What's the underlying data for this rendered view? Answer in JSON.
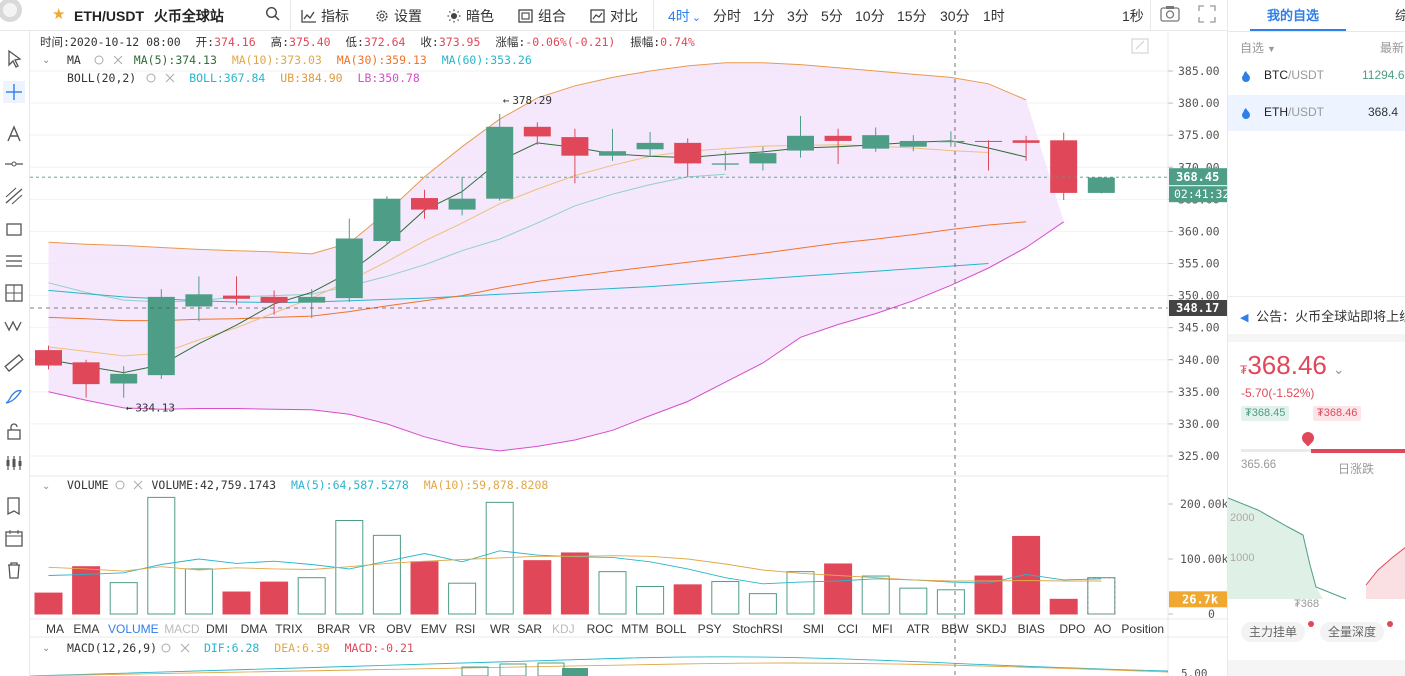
{
  "colors": {
    "up": "#4e9d86",
    "down": "#e0485a",
    "boll_fill": "#f3e4fb",
    "boll_up": "#e89a4c",
    "boll_mid": "#8fd0c8",
    "boll_low": "#d64dca",
    "ma5": "#2f6e36",
    "ma10": "#efc07a",
    "ma30": "#f0742a",
    "ma60": "#27b6cc",
    "accent": "#2f7fe8"
  },
  "toolbar": {
    "symbol": "ETH/USDT",
    "exchange": "火币全球站",
    "indicators": "指标",
    "settings": "设置",
    "dark": "暗色",
    "combine": "组合",
    "compare": "对比",
    "periods": [
      "4时",
      "分时",
      "1分",
      "3分",
      "5分",
      "10分",
      "15分",
      "30分",
      "1时"
    ],
    "active_period_arrow": "⌄",
    "refresh": "1秒"
  },
  "info": {
    "time_label": "时间:",
    "time": "2020-10-12 08:00",
    "open_label": "开:",
    "open": "374.16",
    "high_label": "高:",
    "high": "375.40",
    "low_label": "低:",
    "low": "372.64",
    "close_label": "收:",
    "close": "373.95",
    "change_label": "涨幅:",
    "change": "-0.06%(-0.21)",
    "amp_label": "振幅:",
    "amp": "0.74%"
  },
  "legend": {
    "ma": "MA",
    "ma5": "MA(5):374.13",
    "ma10": "MA(10):373.03",
    "ma30": "MA(30):359.13",
    "ma60": "MA(60):353.26",
    "boll": "BOLL(20,2)",
    "boll_mid": "BOLL:367.84",
    "boll_ub": "UB:384.90",
    "boll_lb": "LB:350.78"
  },
  "volume_legend": {
    "name": "VOLUME",
    "value": "VOLUME:42,759.1743",
    "ma5": "MA(5):64,587.5278",
    "ma10": "MA(10):59,878.8208"
  },
  "macd_legend": {
    "name": "MACD(12,26,9)",
    "dif": "DIF:6.28",
    "dea": "DEA:6.39",
    "macd": "MACD:-0.21"
  },
  "price_axis": [
    "385.00",
    "380.00",
    "375.00",
    "370.00",
    "365.00",
    "360.00",
    "355.00",
    "350.00",
    "345.00",
    "340.00",
    "335.00",
    "330.00",
    "325.00"
  ],
  "volume_axis": [
    "200.00k",
    "100.00k",
    "0"
  ],
  "macd_axis": [
    "5.00"
  ],
  "last_price": "368.45",
  "countdown": "02:41:32",
  "crosshair_price": "348.17",
  "volume_last": "26.7k",
  "annotations": {
    "max": "378.29",
    "min": "334.13",
    "arrow": "←"
  },
  "indicator_tabs": [
    "MA",
    "EMA",
    "VOLUME",
    "MACD",
    "DMI",
    "DMA",
    "TRIX",
    "BRAR",
    "VR",
    "OBV",
    "EMV",
    "RSI",
    "WR",
    "SAR",
    "KDJ",
    "ROC",
    "MTM",
    "BOLL",
    "PSY",
    "StochRSI",
    "SMI",
    "CCI",
    "MFI",
    "ATR",
    "BBW",
    "SKDJ",
    "BIAS",
    "DPO",
    "AO",
    "Position"
  ],
  "active_indicator": "VOLUME",
  "disabled_indicators": [
    "MACD",
    "KDJ"
  ],
  "chart_data": {
    "type": "candlestick",
    "ohlc": [
      [
        341.5,
        342.2,
        338.5,
        339.1
      ],
      [
        339.6,
        340.0,
        334.1,
        336.2
      ],
      [
        336.3,
        339.0,
        334.1,
        337.8
      ],
      [
        337.6,
        351.0,
        337.0,
        349.8
      ],
      [
        348.3,
        353.0,
        346.0,
        350.2
      ],
      [
        350.0,
        353.0,
        348.5,
        349.5
      ],
      [
        349.8,
        350.8,
        347.0,
        348.9
      ],
      [
        348.9,
        351.0,
        346.5,
        349.8
      ],
      [
        349.6,
        362.0,
        349.0,
        358.9
      ],
      [
        358.5,
        365.5,
        358.0,
        365.1
      ],
      [
        365.2,
        366.5,
        362.0,
        363.4
      ],
      [
        363.4,
        368.5,
        362.5,
        365.1
      ],
      [
        365.1,
        378.3,
        364.8,
        376.3
      ],
      [
        376.3,
        377.0,
        373.5,
        374.8
      ],
      [
        374.7,
        376.0,
        367.5,
        371.8
      ],
      [
        371.8,
        376.0,
        371.0,
        372.5
      ],
      [
        372.8,
        375.5,
        371.8,
        373.8
      ],
      [
        373.8,
        374.5,
        368.5,
        370.6
      ],
      [
        370.4,
        372.5,
        369.5,
        370.6
      ],
      [
        370.6,
        373.2,
        369.5,
        372.2
      ],
      [
        372.6,
        378.0,
        371.5,
        374.9
      ],
      [
        374.9,
        376.0,
        370.5,
        374.1
      ],
      [
        372.9,
        376.2,
        372.4,
        375.0
      ],
      [
        373.2,
        375.0,
        372.5,
        374.1
      ],
      [
        373.9,
        375.6,
        373.2,
        374.1
      ],
      [
        374.1,
        374.2,
        369.5,
        374.0
      ],
      [
        374.2,
        374.9,
        371.0,
        373.8
      ],
      [
        374.2,
        375.4,
        364.9,
        366.0
      ],
      [
        366.0,
        368.5,
        365.9,
        368.4
      ]
    ],
    "volume": [
      38000,
      86000,
      57000,
      212000,
      82000,
      40000,
      58000,
      66000,
      170000,
      143000,
      95000,
      56000,
      203000,
      97000,
      111000,
      77000,
      50000,
      53000,
      59000,
      37000,
      77000,
      91000,
      69000,
      47000,
      44000,
      69000,
      141000,
      26700,
      66000
    ],
    "ma5": [
      340.0,
      339.0,
      338.0,
      339.2,
      342.5,
      345.4,
      348.7,
      350.5,
      353.6,
      358.0,
      363.3,
      366.2,
      371.0,
      373.8,
      373.1,
      372.1,
      371.7,
      371.5,
      372.0,
      372.4,
      373.0,
      373.2,
      373.5,
      373.9,
      374.1,
      373.0,
      371.6
    ],
    "ma10": [
      342.0,
      341.3,
      340.6,
      341.0,
      343.1,
      345.0,
      347.3,
      349.6,
      352.3,
      355.3,
      358.5,
      361.3,
      364.3,
      366.6,
      368.7,
      370.3,
      371.7,
      372.5,
      372.9,
      373.3,
      373.4,
      373.5,
      373.3,
      373.0,
      372.6,
      372.3
    ],
    "ma30": [
      346.6,
      346.4,
      346.1,
      346.1,
      346.3,
      346.4,
      346.6,
      346.8,
      347.5,
      348.4,
      349.2,
      350.0,
      351.2,
      352.2,
      353.0,
      353.8,
      354.5,
      355.2,
      355.9,
      356.6,
      357.4,
      358.2,
      358.8,
      359.5,
      360.3,
      361.0,
      361.5
    ],
    "ma60": [
      350.8,
      350.3,
      349.8,
      349.5,
      349.2,
      349.0,
      348.9,
      349.0,
      349.2,
      349.4,
      349.6,
      349.9,
      350.2,
      350.5,
      350.8,
      351.1,
      351.4,
      351.8,
      352.2,
      352.6,
      353.0,
      353.4,
      353.8,
      354.2,
      354.6,
      355.0
    ],
    "boll_ub": [
      358.3,
      358.0,
      357.8,
      357.5,
      357.2,
      357.0,
      356.8,
      356.5,
      358.2,
      363.0,
      368.5,
      373.2,
      377.5,
      380.8,
      382.7,
      384.0,
      385.0,
      385.8,
      386.3,
      386.3,
      386.0,
      385.5,
      385.0,
      384.5,
      384.0,
      383.0,
      380.5
    ],
    "boll_mid": [
      352.0,
      350.5,
      349.3,
      349.0,
      349.2,
      349.8,
      350.0,
      350.2,
      351.5,
      353.0,
      354.8,
      357.0,
      358.8,
      361.3,
      364.0,
      365.8,
      367.3,
      368.5,
      368.9
    ],
    "boll_lb": [
      335.0,
      333.7,
      332.5,
      332.3,
      332.4,
      332.4,
      332.3,
      332.2,
      331.5,
      330.0,
      328.0,
      326.5,
      325.8,
      326.5,
      327.5,
      329.0,
      331.3,
      333.5,
      336.5,
      339.5,
      343.5,
      345.5,
      347.2,
      349.2,
      351.6,
      354.3,
      357.5,
      361.5
    ],
    "price_range": [
      322,
      389
    ],
    "volume_range": [
      0,
      240000
    ]
  },
  "right_panel": {
    "tab_watchlist": "我的自选",
    "tab_other": "综",
    "filter_label": "自选",
    "col_latest": "最新",
    "rows": [
      {
        "base": "BTC",
        "quote": "/USDT",
        "price": "11294.6"
      },
      {
        "base": "ETH",
        "quote": "/USDT",
        "price": "368.4"
      }
    ],
    "notice": "公告：火币全球站即将上线",
    "big_price_currency": "₮",
    "big_price": "368.46",
    "change": "-5.70(-1.52%)",
    "bid": "₮368.45",
    "ask": "₮368.46",
    "low_24h": "365.66",
    "day_change_label": "日涨跌",
    "depth_2000": "2000",
    "depth_1000": "1000",
    "depth_price": "₮368",
    "btn_main": "主力挂单",
    "btn_depth": "全量深度"
  }
}
